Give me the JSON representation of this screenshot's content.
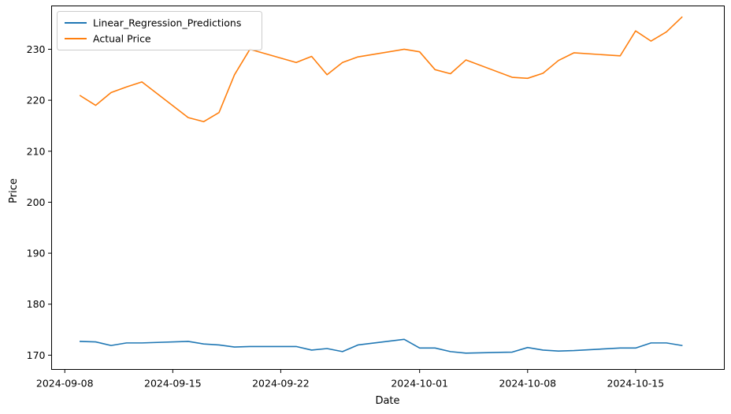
{
  "chart_data": {
    "type": "line",
    "title": "",
    "xlabel": "Date",
    "ylabel": "Price",
    "x_ticks": [
      "2024-09-08",
      "2024-09-15",
      "2024-09-22",
      "2024-10-01",
      "2024-10-08",
      "2024-10-15"
    ],
    "y_ticks": [
      170,
      180,
      190,
      200,
      210,
      220,
      230
    ],
    "xlim": [
      "2024-09-08",
      "2024-10-20"
    ],
    "ylim": [
      167.2,
      238.5
    ],
    "grid": false,
    "legend_position": "top-left",
    "x": [
      "2024-09-09",
      "2024-09-10",
      "2024-09-11",
      "2024-09-12",
      "2024-09-13",
      "2024-09-16",
      "2024-09-17",
      "2024-09-18",
      "2024-09-19",
      "2024-09-20",
      "2024-09-23",
      "2024-09-24",
      "2024-09-25",
      "2024-09-26",
      "2024-09-27",
      "2024-09-30",
      "2024-10-01",
      "2024-10-02",
      "2024-10-03",
      "2024-10-04",
      "2024-10-07",
      "2024-10-08",
      "2024-10-09",
      "2024-10-10",
      "2024-10-11",
      "2024-10-14",
      "2024-10-15",
      "2024-10-16",
      "2024-10-17",
      "2024-10-18"
    ],
    "series": [
      {
        "name": "Linear_Regression_Predictions",
        "color": "#1f77b4",
        "values": [
          172.7,
          172.6,
          171.9,
          172.4,
          172.4,
          172.7,
          172.2,
          172.0,
          171.6,
          171.7,
          171.7,
          171.0,
          171.3,
          170.7,
          172.0,
          173.1,
          171.4,
          171.4,
          170.7,
          170.4,
          170.6,
          171.5,
          171.0,
          170.8,
          170.9,
          171.4,
          171.4,
          172.4,
          172.4,
          171.9
        ]
      },
      {
        "name": "Actual Price",
        "color": "#ff7f0e",
        "values": [
          220.9,
          219.0,
          221.5,
          222.6,
          223.6,
          216.6,
          215.8,
          217.6,
          225.0,
          230.0,
          227.4,
          228.6,
          225.0,
          227.4,
          228.5,
          230.0,
          229.5,
          226.0,
          225.2,
          227.9,
          224.5,
          224.3,
          225.3,
          227.8,
          229.3,
          228.7,
          233.6,
          231.6,
          233.4,
          236.3
        ]
      }
    ]
  }
}
